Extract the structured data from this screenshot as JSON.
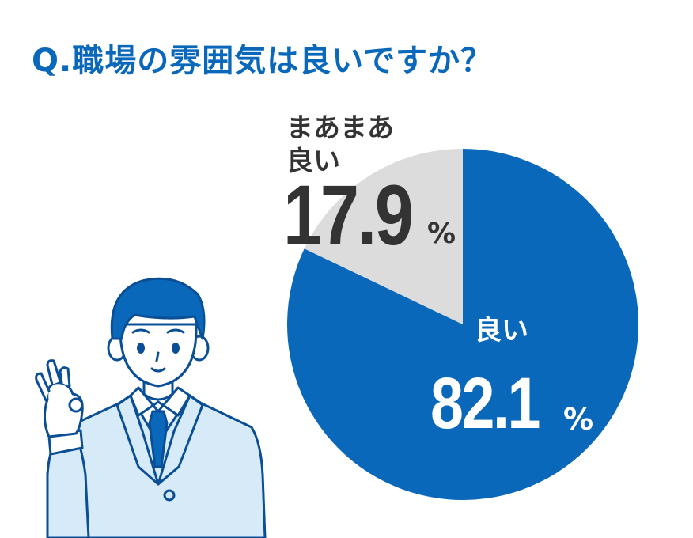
{
  "question": "Q.職場の雰囲気は良いですか？",
  "colors": {
    "accent": "#0a68bb",
    "secondary_slice": "#dcdcdc",
    "dark_text": "#333333",
    "illustration_fill": "#d6eaf8"
  },
  "chart_data": {
    "type": "pie",
    "title": "Q.職場の雰囲気は良いですか？",
    "unit": "%",
    "slices": [
      {
        "label": "良い",
        "value": 82.1,
        "display": "82.1",
        "color": "#0a68bb"
      },
      {
        "label": "まあまあ良い",
        "label_lines": [
          "まあまあ",
          "良い"
        ],
        "value": 17.9,
        "display": "17.9",
        "color": "#dcdcdc"
      }
    ]
  },
  "illustration": {
    "icon": "businessman-ok-sign-icon"
  }
}
